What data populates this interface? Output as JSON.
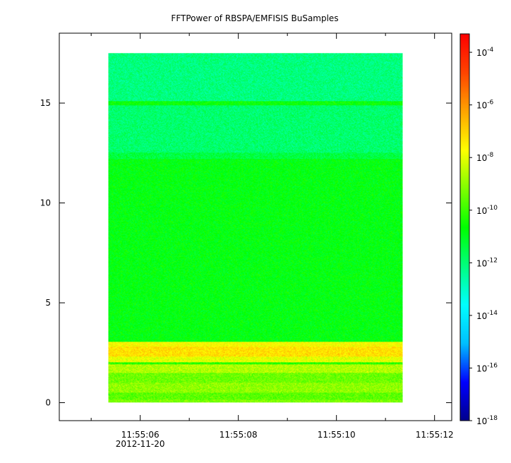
{
  "chart_data": {
    "type": "heatmap",
    "title": "FFTPower of RBSPA/EMFISIS  BuSamples",
    "xlabel": "",
    "ylabel": "",
    "x_ticks": [
      {
        "value": 0,
        "label": "11:55:06",
        "sublabel": "2012-11-20"
      },
      {
        "value": 2,
        "label": "11:55:08"
      },
      {
        "value": 4,
        "label": "11:55:10"
      },
      {
        "value": 6,
        "label": "11:55:12"
      }
    ],
    "x_minor_ticks": [
      -1,
      1,
      3,
      5
    ],
    "xlim": [
      -1.65,
      6.35
    ],
    "data_x_range": [
      -0.65,
      5.35
    ],
    "y_ticks": [
      0,
      5,
      10,
      15
    ],
    "ylim": [
      -0.9,
      18.5
    ],
    "data_y_range": [
      0,
      17.5
    ],
    "colorbar": {
      "scale": "log",
      "range_exp": [
        -18,
        -3.3
      ],
      "colors": [
        "#00008b",
        "#0000ff",
        "#00bfff",
        "#00ffff",
        "#00ff80",
        "#00ff00",
        "#7fff00",
        "#ffff00",
        "#ffa500",
        "#ff4500",
        "#ff0000"
      ],
      "ticks": [
        {
          "base": "10",
          "exp": "-4",
          "value": -4
        },
        {
          "base": "10",
          "exp": "-6",
          "value": -6
        },
        {
          "base": "10",
          "exp": "-8",
          "value": -8
        },
        {
          "base": "10",
          "exp": "-10",
          "value": -10
        },
        {
          "base": "10",
          "exp": "-12",
          "value": -12
        },
        {
          "base": "10",
          "exp": "-14",
          "value": -14
        },
        {
          "base": "10",
          "exp": "-16",
          "value": -16
        },
        {
          "base": "10",
          "exp": "-18",
          "value": -18
        }
      ]
    },
    "bands": [
      {
        "y": [
          0,
          0.15
        ],
        "log_power": -9.2
      },
      {
        "y": [
          0.15,
          0.5
        ],
        "log_power": -9.6
      },
      {
        "y": [
          0.5,
          1.0
        ],
        "log_power": -9.0
      },
      {
        "y": [
          1.0,
          1.5
        ],
        "log_power": -9.4
      },
      {
        "y": [
          1.5,
          1.9
        ],
        "log_power": -8.6
      },
      {
        "y": [
          1.9,
          2.0
        ],
        "log_power": -10.2
      },
      {
        "y": [
          2.0,
          2.3
        ],
        "log_power": -8.0
      },
      {
        "y": [
          2.3,
          2.8
        ],
        "log_power": -7.2
      },
      {
        "y": [
          2.8,
          3.05
        ],
        "log_power": -7.7
      },
      {
        "y": [
          3.05,
          12.2
        ],
        "log_power": -10.8
      },
      {
        "y": [
          12.2,
          12.5
        ],
        "log_power": -11.4
      },
      {
        "y": [
          12.5,
          14.9
        ],
        "log_power": -11.9
      },
      {
        "y": [
          14.9,
          15.1
        ],
        "log_power": -10.6
      },
      {
        "y": [
          15.1,
          17.5
        ],
        "log_power": -12.1
      }
    ]
  }
}
